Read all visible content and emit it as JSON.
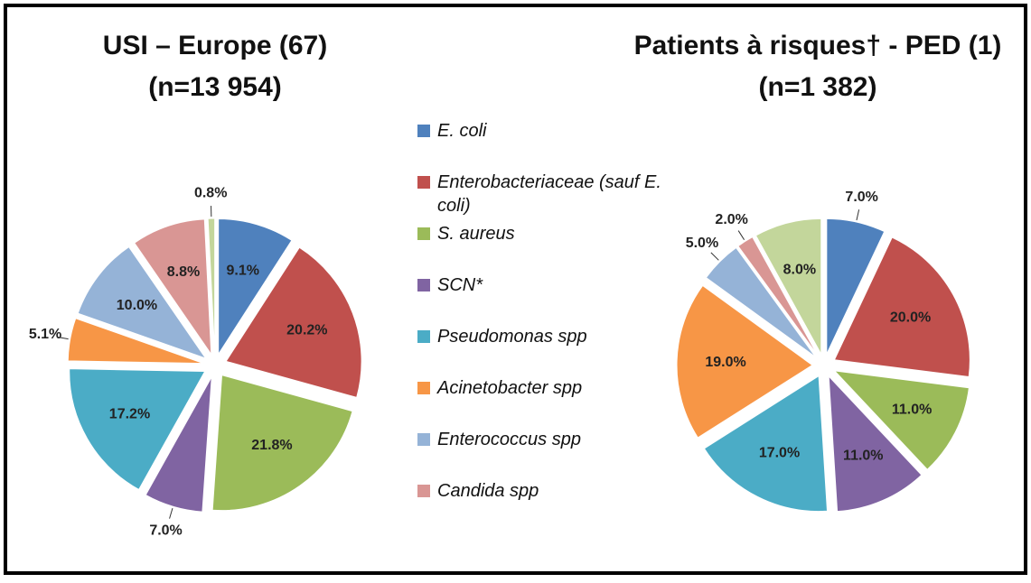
{
  "chart_data": {
    "type": "pie",
    "categories": [
      "E. coli",
      "Enterobacteriaceae (sauf E. coli)",
      "S. aureus",
      "SCN*",
      "Pseudomonas spp",
      "Acinetobacter spp",
      "Enterococcus spp",
      "Candida spp",
      null
    ],
    "colors": [
      "#4f81bd",
      "#c0504d",
      "#9bbb59",
      "#8064a2",
      "#4bacc6",
      "#f79646",
      "#95b3d7",
      "#d99694",
      "#c3d69b"
    ],
    "series": [
      {
        "name": "USI – Europe (67)",
        "subtitle": "(n=13 954)",
        "values": [
          9.1,
          20.2,
          21.8,
          7.0,
          17.2,
          5.1,
          10.0,
          8.8,
          0.8
        ],
        "value_labels": [
          "9.1%",
          "20.2%",
          "21.8%",
          "7.0%",
          "17.2%",
          "5.1%",
          "10.0%",
          "8.8%",
          "0.8%"
        ]
      },
      {
        "name": "Patients à risques† - PED (1)",
        "subtitle": "(n=1 382)",
        "values": [
          7.0,
          20.0,
          11.0,
          11.0,
          17.0,
          19.0,
          5.0,
          2.0,
          8.0
        ],
        "value_labels": [
          "7.0%",
          "20.0%",
          "11.0%",
          "11.0%",
          "17.0%",
          "19.0%",
          "5.0%",
          "2.0%",
          "8.0%"
        ]
      }
    ]
  }
}
